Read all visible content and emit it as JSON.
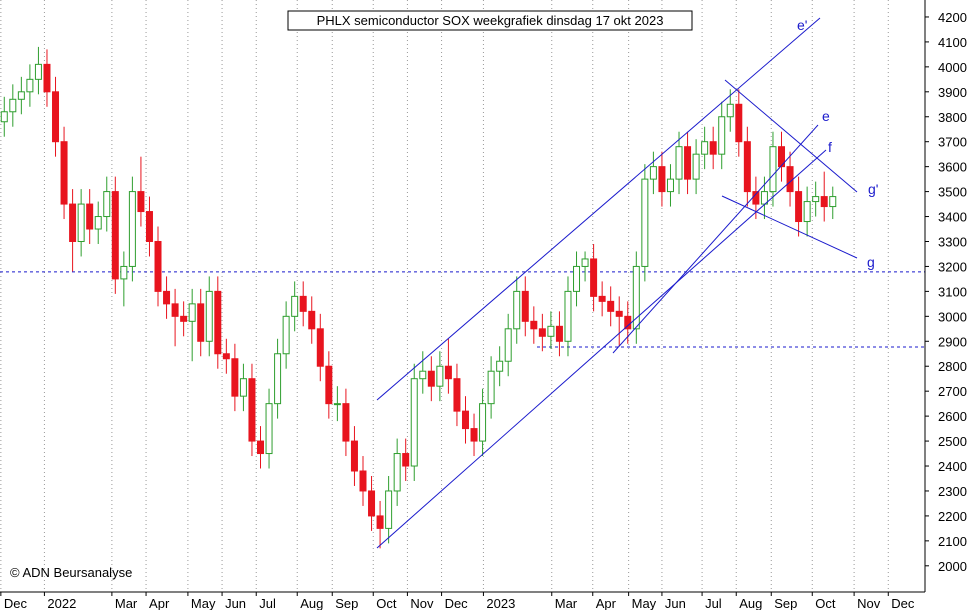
{
  "chart_data": {
    "type": "candlestick",
    "title": "PHLX semiconductor SOX weekgrafiek dinsdag 17 okt 2023",
    "credit": "© ADN Beursanalyse",
    "categories": [
      null,
      null,
      null,
      null,
      null,
      null,
      null,
      null,
      null,
      null,
      null,
      null,
      null,
      null,
      null,
      null,
      null,
      null,
      null,
      null,
      null,
      null,
      null,
      null,
      null,
      null,
      null,
      null,
      null,
      null,
      null,
      null,
      null,
      null,
      null,
      null,
      null,
      null,
      null,
      null,
      null,
      null,
      null,
      null,
      null,
      null,
      null,
      null,
      null,
      null,
      null,
      null,
      null,
      null,
      null,
      null,
      null,
      null,
      null,
      null,
      null,
      null,
      null,
      null,
      null,
      null,
      null,
      null,
      null,
      null,
      null,
      null,
      null,
      null,
      null,
      null,
      null,
      null,
      null,
      null,
      null,
      null,
      null,
      null,
      null,
      null,
      null,
      null,
      null,
      null,
      null,
      null,
      null,
      null,
      null,
      null,
      null,
      null
    ],
    "open": [
      3780,
      3820,
      3870,
      3900,
      3950,
      4010,
      3900,
      3700,
      3450,
      3300,
      3450,
      3350,
      3400,
      3500,
      3150,
      3200,
      3500,
      3420,
      3300,
      3100,
      3050,
      3000,
      2980,
      3050,
      2900,
      3100,
      2850,
      2830,
      2680,
      2750,
      2500,
      2450,
      2650,
      2850,
      3000,
      3080,
      3020,
      2950,
      2800,
      2650,
      2650,
      2500,
      2380,
      2300,
      2200,
      2150,
      2300,
      2450,
      2400,
      2750,
      2780,
      2720,
      2800,
      2750,
      2620,
      2550,
      2500,
      2650,
      2780,
      2820,
      2950,
      3100,
      2980,
      2950,
      2920,
      2960,
      2900,
      3100,
      3200,
      3230,
      3080,
      3060,
      3020,
      3000,
      2950,
      3200,
      3550,
      3600,
      3500,
      3550,
      3680,
      3550,
      3650,
      3700,
      3650,
      3800,
      3850,
      3700,
      3500,
      3450,
      3500,
      3680,
      3600,
      3500,
      3380,
      3460,
      3480,
      3440
    ],
    "high": [
      3880,
      3930,
      3960,
      4010,
      4080,
      4070,
      3960,
      3760,
      3510,
      3510,
      3510,
      3460,
      3560,
      3560,
      3260,
      3560,
      3640,
      3480,
      3360,
      3160,
      3110,
      3060,
      3110,
      3110,
      3160,
      3160,
      2910,
      2890,
      2810,
      2810,
      2560,
      2710,
      2910,
      3060,
      3140,
      3140,
      3080,
      3010,
      2860,
      2720,
      2710,
      2560,
      2440,
      2360,
      2260,
      2360,
      2510,
      2510,
      2810,
      2860,
      2840,
      2860,
      2910,
      2810,
      2680,
      2610,
      2710,
      2840,
      2880,
      3010,
      3160,
      3160,
      3040,
      3010,
      3020,
      3020,
      3160,
      3260,
      3260,
      3290,
      3140,
      3120,
      3080,
      3060,
      3260,
      3610,
      3660,
      3660,
      3610,
      3740,
      3740,
      3710,
      3760,
      3760,
      3860,
      3910,
      3910,
      3760,
      3560,
      3560,
      3740,
      3740,
      3660,
      3560,
      3520,
      3540,
      3580,
      3520
    ],
    "low": [
      3720,
      3760,
      3810,
      3840,
      3890,
      3840,
      3640,
      3390,
      3180,
      3240,
      3290,
      3290,
      3340,
      3090,
      3040,
      3140,
      3360,
      3240,
      3040,
      2990,
      2880,
      2920,
      2820,
      2840,
      2840,
      2790,
      2770,
      2620,
      2620,
      2440,
      2390,
      2390,
      2590,
      2790,
      2940,
      2960,
      2890,
      2740,
      2590,
      2580,
      2440,
      2320,
      2240,
      2140,
      2070,
      2090,
      2240,
      2340,
      2340,
      2690,
      2660,
      2660,
      2690,
      2560,
      2490,
      2440,
      2440,
      2590,
      2720,
      2760,
      2890,
      2920,
      2890,
      2860,
      2870,
      2840,
      2840,
      3040,
      3140,
      3020,
      3000,
      2960,
      2880,
      2890,
      2890,
      3140,
      3490,
      3440,
      3440,
      3490,
      3490,
      3490,
      3590,
      3590,
      3590,
      3740,
      3640,
      3440,
      3390,
      3390,
      3440,
      3540,
      3440,
      3320,
      3320,
      3400,
      3380,
      3390
    ],
    "close": [
      3820,
      3870,
      3900,
      3950,
      4010,
      3900,
      3700,
      3450,
      3300,
      3450,
      3350,
      3400,
      3500,
      3150,
      3200,
      3500,
      3420,
      3300,
      3100,
      3050,
      3000,
      2980,
      3050,
      2900,
      3100,
      2850,
      2830,
      2680,
      2750,
      2500,
      2450,
      2650,
      2850,
      3000,
      3080,
      3020,
      2950,
      2800,
      2650,
      2650,
      2500,
      2380,
      2300,
      2200,
      2150,
      2300,
      2450,
      2400,
      2750,
      2780,
      2720,
      2800,
      2750,
      2620,
      2550,
      2500,
      2650,
      2780,
      2820,
      2950,
      3100,
      2980,
      2950,
      2920,
      2960,
      2900,
      3100,
      3200,
      3230,
      3080,
      3060,
      3020,
      3000,
      2950,
      3200,
      3550,
      3600,
      3500,
      3550,
      3680,
      3550,
      3650,
      3700,
      3650,
      3800,
      3850,
      3700,
      3500,
      3450,
      3500,
      3680,
      3600,
      3500,
      3380,
      3460,
      3480,
      3440,
      3480
    ],
    "up_color": "#2e9e2e",
    "down_color": "#e8141e",
    "xlim": [
      -0.5,
      107.8
    ],
    "xticks": [
      {
        "value": -0.4,
        "label": "Dec"
      },
      {
        "value": 4.7,
        "label": "2022"
      },
      {
        "value": 12.6,
        "label": "Mar"
      },
      {
        "value": 16.6,
        "label": "Apr"
      },
      {
        "value": 21.5,
        "label": "May"
      },
      {
        "value": 25.5,
        "label": "Jun"
      },
      {
        "value": 29.5,
        "label": "Jul"
      },
      {
        "value": 34.3,
        "label": "Aug"
      },
      {
        "value": 38.4,
        "label": "Sep"
      },
      {
        "value": 43.2,
        "label": "Oct"
      },
      {
        "value": 47.2,
        "label": "Nov"
      },
      {
        "value": 51.2,
        "label": "Dec"
      },
      {
        "value": 56.1,
        "label": "2023"
      },
      {
        "value": 64.1,
        "label": "Mar"
      },
      {
        "value": 68.9,
        "label": "Apr"
      },
      {
        "value": 73.1,
        "label": "May"
      },
      {
        "value": 77.0,
        "label": "Jun"
      },
      {
        "value": 81.7,
        "label": "Jul"
      },
      {
        "value": 85.7,
        "label": "Aug"
      },
      {
        "value": 89.8,
        "label": "Sep"
      },
      {
        "value": 94.6,
        "label": "Oct"
      },
      {
        "value": 99.5,
        "label": "Nov"
      },
      {
        "value": 103.5,
        "label": "Dec"
      }
    ],
    "ylim": [
      1895,
      4268
    ],
    "yticks": [
      2000,
      2100,
      2200,
      2300,
      2400,
      2500,
      2600,
      2700,
      2800,
      2900,
      3000,
      3100,
      3200,
      3300,
      3400,
      3500,
      3600,
      3700,
      3800,
      3900,
      4000,
      4100,
      4200
    ],
    "hlines": [
      3178,
      2877
    ],
    "grid": "x",
    "annotations": [
      "e'",
      "e",
      "f",
      "g'",
      "g"
    ]
  }
}
